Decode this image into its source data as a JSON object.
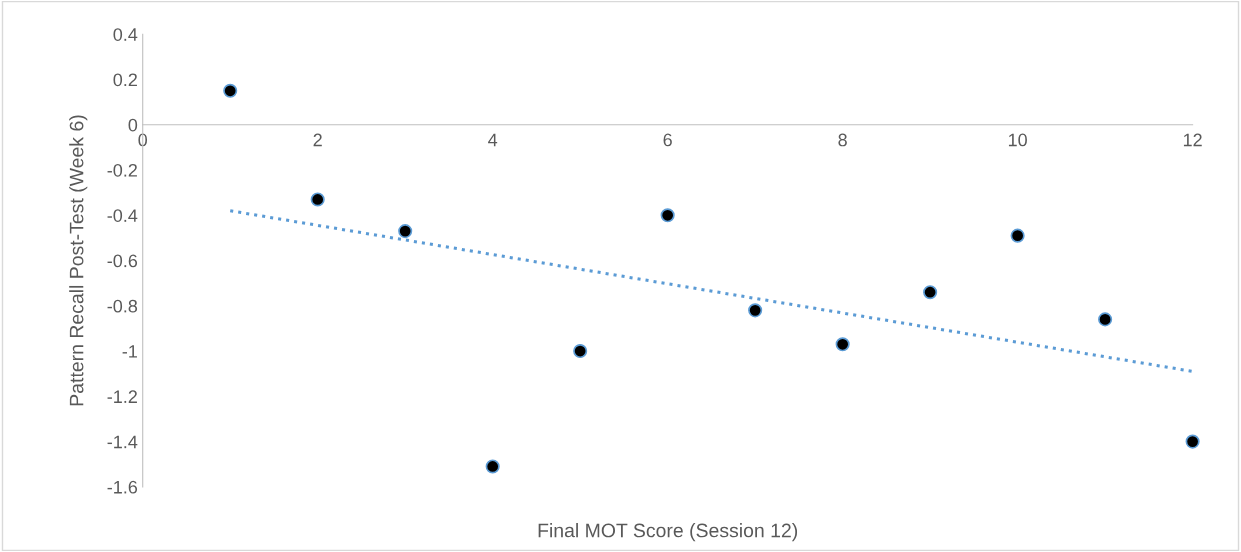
{
  "chart_data": {
    "type": "scatter",
    "xlabel": "Final MOT Score (Session 12)",
    "ylabel": "Pattern Recall Post-Test (Week 6)",
    "xlim": [
      0,
      12
    ],
    "xticks": [
      0,
      2,
      4,
      6,
      8,
      10,
      12
    ],
    "ylim": [
      -1.6,
      0.4
    ],
    "yticks": [
      -1.6,
      -1.4,
      -1.2,
      -1,
      -0.8,
      -0.6,
      -0.4,
      -0.2,
      0,
      0.2,
      0.4
    ],
    "grid": false,
    "legend": false,
    "marker": "circle",
    "series": [
      {
        "color": "#000000",
        "x": [
          1,
          2,
          3,
          4,
          5,
          6,
          7,
          8,
          9,
          10,
          11,
          12
        ],
        "values": [
          0.15,
          -0.33,
          -0.47,
          -1.51,
          -1.0,
          -0.4,
          -0.82,
          -0.97,
          -0.74,
          -0.49,
          -0.86,
          -1.4
        ]
      },
      {
        "type": "line",
        "color": "#5b9bd5",
        "line_style": "dotted",
        "marker": "none",
        "x": [
          1,
          12
        ],
        "values": [
          -0.38,
          -1.09
        ]
      }
    ]
  }
}
